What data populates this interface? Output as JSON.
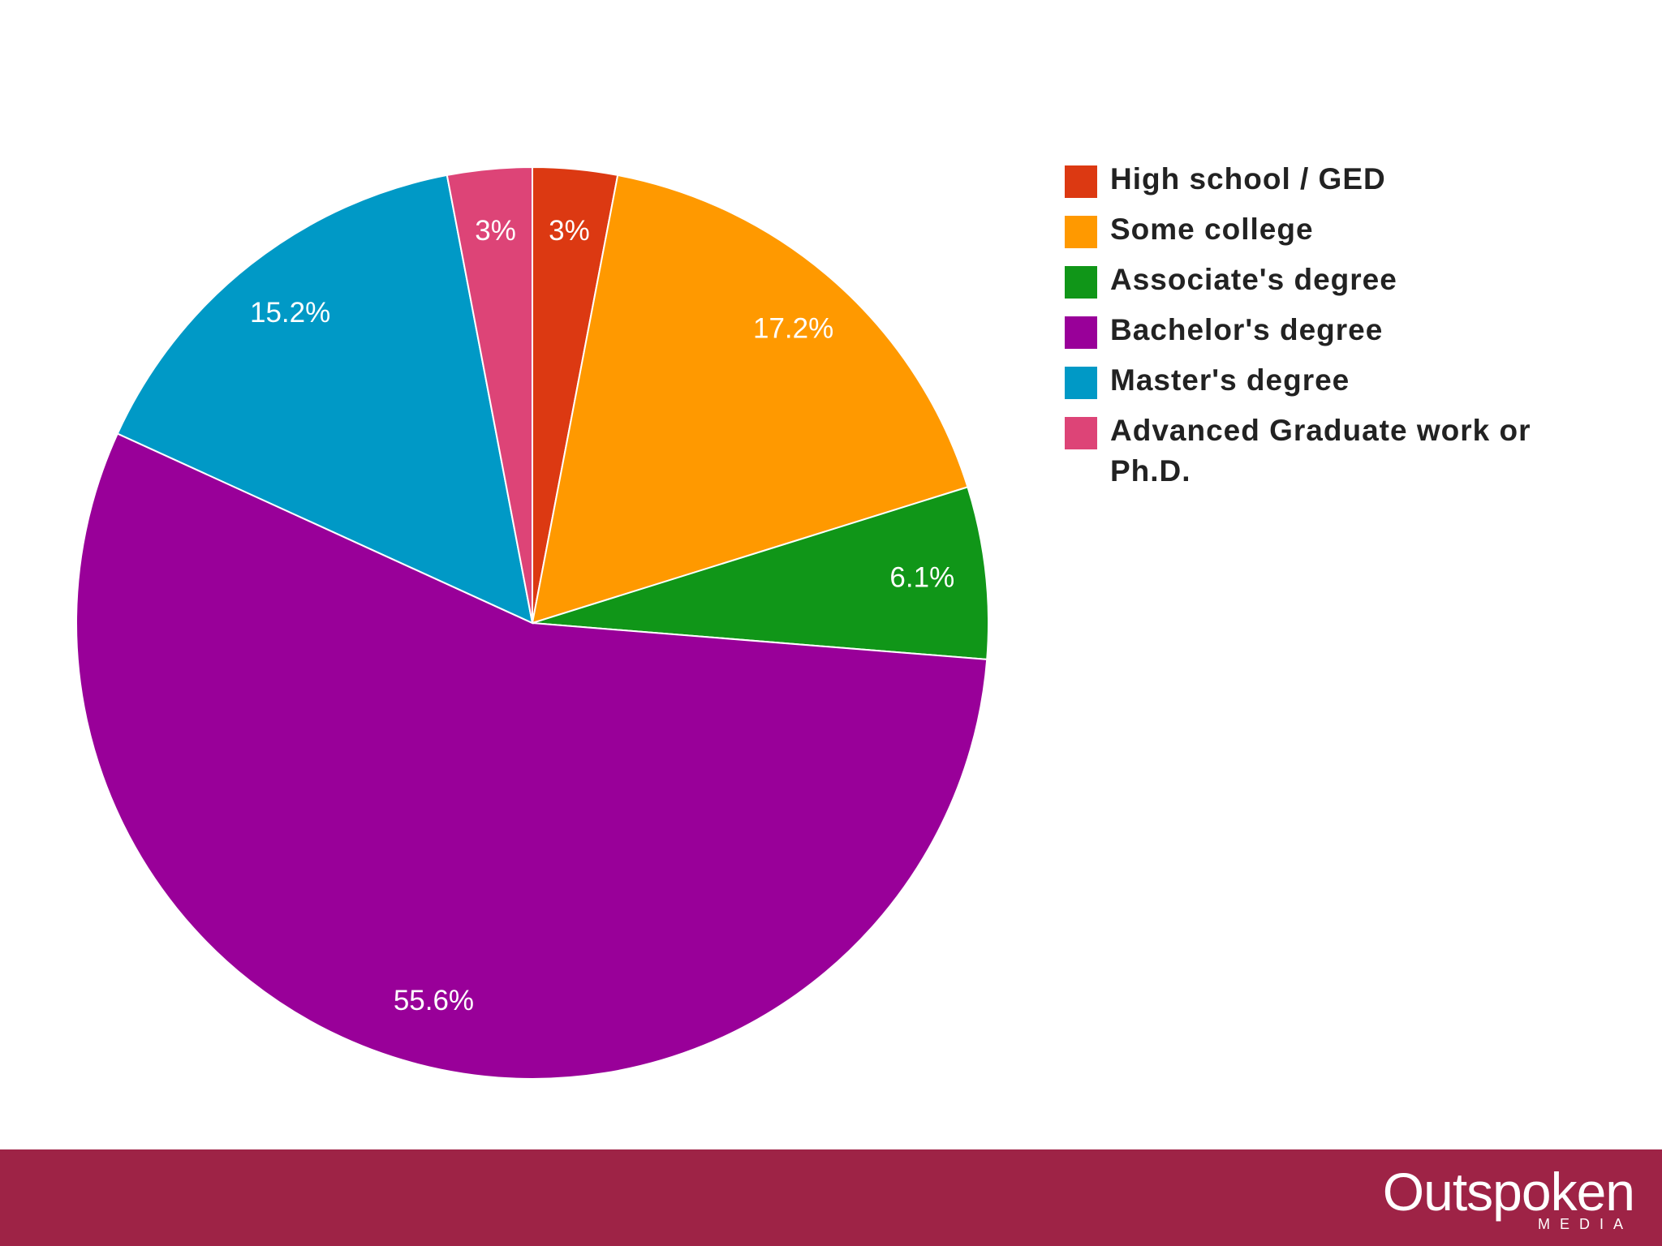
{
  "chart_data": {
    "type": "pie",
    "categories": [
      "High school / GED",
      "Some college",
      "Associate's degree",
      "Bachelor's degree",
      "Master's degree",
      "Advanced Graduate work or Ph.D."
    ],
    "values": [
      3,
      17.2,
      6.1,
      55.6,
      15.2,
      3
    ],
    "value_labels": [
      "3%",
      "17.2%",
      "6.1%",
      "55.6%",
      "15.2%",
      "3%"
    ],
    "colors": [
      "#dc3912",
      "#ff9900",
      "#109618",
      "#990099",
      "#0099c6",
      "#dd4477"
    ],
    "legend": "right"
  },
  "footer": {
    "brand": "Outspoken",
    "tagline": "MEDIA"
  }
}
